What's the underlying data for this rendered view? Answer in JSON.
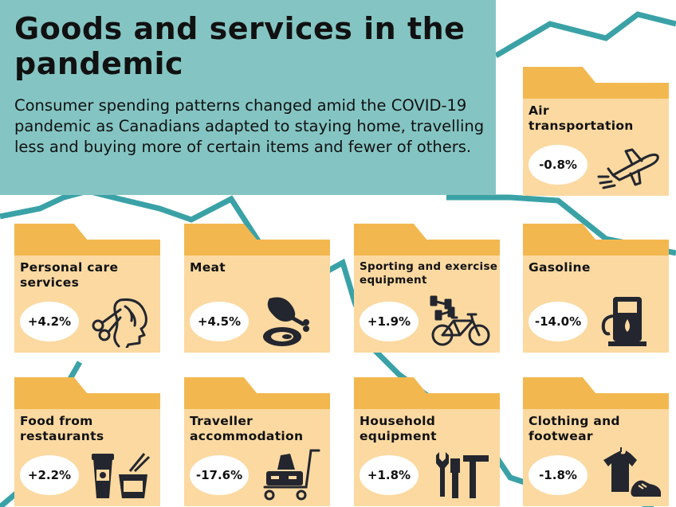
{
  "header": {
    "title": "Goods and services in the pandemic",
    "subtitle": "Consumer spending patterns changed amid the COVID-19 pandemic as Canadians adapted to staying home, travelling less and buying more of certain items and fewer of others."
  },
  "colors": {
    "header_bg": "#84c5c3",
    "teal_line": "#3aa2a7",
    "folder_tab": "#f2b84f",
    "folder_body": "#fbd9a1",
    "icon_color": "#23262e"
  },
  "cards": [
    {
      "label": "Air transportation",
      "value": "-0.8%",
      "icon": "airplane-icon"
    },
    {
      "label": "Personal care services",
      "value": "+4.2%",
      "icon": "scissors-head-icon"
    },
    {
      "label": "Meat",
      "value": "+4.5%",
      "icon": "meat-icon"
    },
    {
      "label": "Sporting and exercise equipment",
      "value": "+1.9%",
      "icon": "dumbbell-bicycle-icon"
    },
    {
      "label": "Gasoline",
      "value": "-14.0%",
      "icon": "gas-pump-icon"
    },
    {
      "label": "Food from restaurants",
      "value": "+2.2%",
      "icon": "takeout-food-icon"
    },
    {
      "label": "Traveller accommodation",
      "value": "-17.6%",
      "icon": "luggage-cart-icon"
    },
    {
      "label": "Household equipment",
      "value": "+1.8%",
      "icon": "tools-icon"
    },
    {
      "label": "Clothing and footwear",
      "value": "-1.8%",
      "icon": "shirt-shoe-icon"
    }
  ]
}
